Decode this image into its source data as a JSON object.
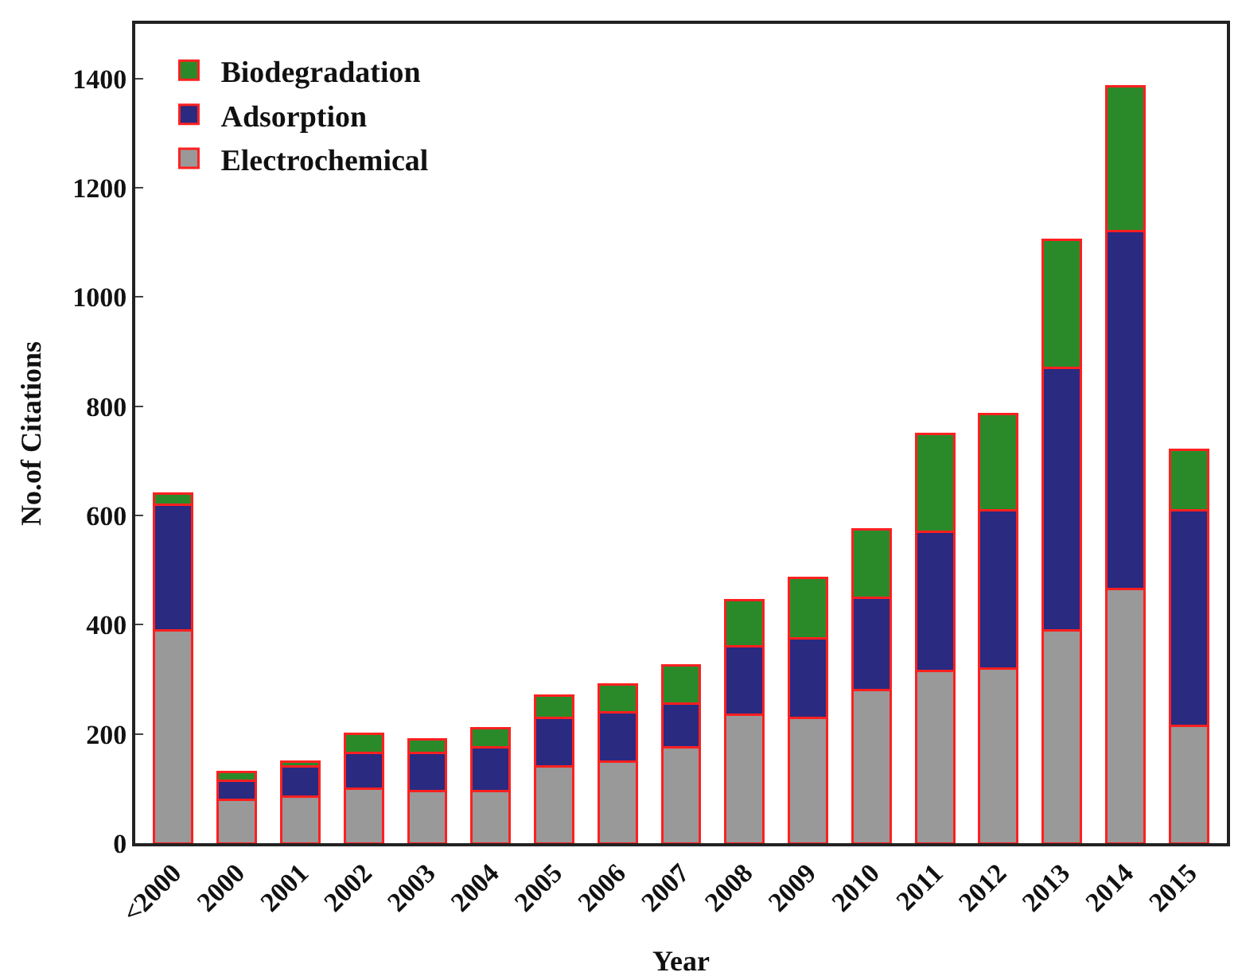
{
  "chart_data": {
    "type": "bar",
    "stacked": true,
    "xlabel": "Year",
    "ylabel": "No.of Citations",
    "categories": [
      "<2000",
      "2000",
      "2001",
      "2002",
      "2003",
      "2004",
      "2005",
      "2006",
      "2007",
      "2008",
      "2009",
      "2010",
      "2011",
      "2012",
      "2013",
      "2014",
      "2015"
    ],
    "series": [
      {
        "name": "Electrochemical",
        "color": "#999999",
        "values": [
          390,
          80,
          85,
          100,
          95,
          95,
          140,
          150,
          175,
          235,
          230,
          280,
          315,
          320,
          390,
          465,
          215
        ]
      },
      {
        "name": "Adsorption",
        "color": "#2a2a80",
        "values": [
          230,
          35,
          55,
          65,
          70,
          80,
          90,
          90,
          80,
          125,
          145,
          170,
          255,
          290,
          480,
          655,
          395
        ]
      },
      {
        "name": "Biodegradation",
        "color": "#2a8a2a",
        "values": [
          20,
          15,
          10,
          35,
          25,
          35,
          40,
          50,
          70,
          85,
          110,
          125,
          180,
          175,
          235,
          265,
          110
        ]
      }
    ],
    "ylim": [
      0,
      1500
    ],
    "yticks": [
      0,
      200,
      400,
      600,
      800,
      1000,
      1200,
      1400
    ],
    "legend": "top left"
  }
}
